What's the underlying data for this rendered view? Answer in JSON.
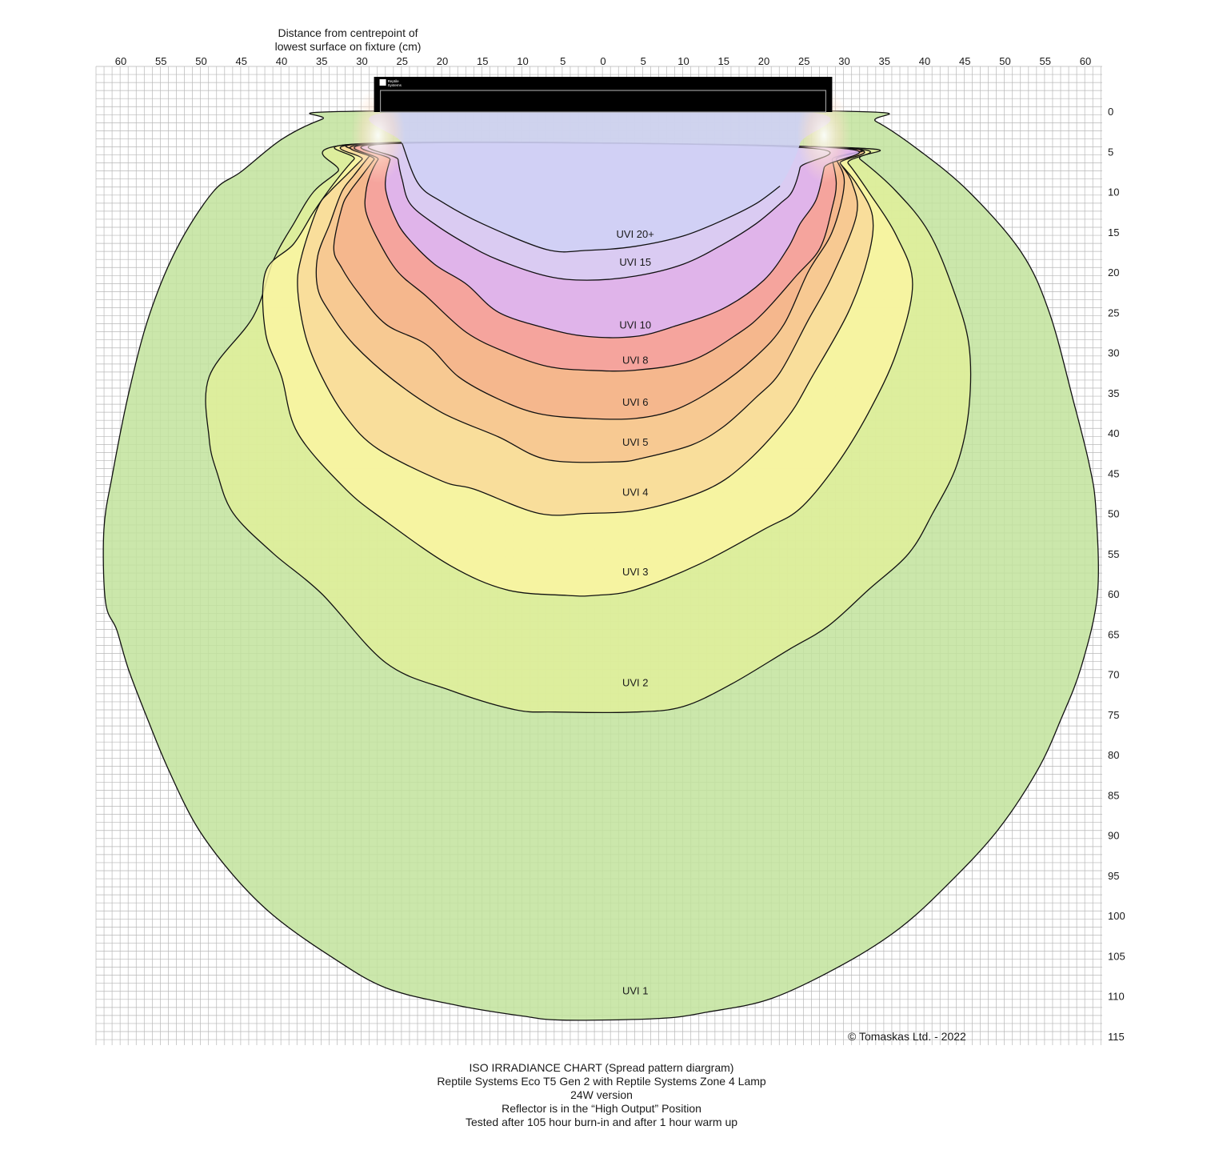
{
  "chart_data": {
    "type": "contour",
    "x_axis_label": [
      "Distance from centrepoint of",
      "lowest surface on fixture (cm)"
    ],
    "x_ticks": [
      60,
      55,
      50,
      45,
      40,
      35,
      30,
      25,
      20,
      15,
      10,
      5,
      0,
      5,
      10,
      15,
      20,
      25,
      30,
      35,
      40,
      45,
      50,
      55,
      60
    ],
    "y_ticks": [
      0,
      5,
      10,
      15,
      20,
      25,
      30,
      35,
      40,
      45,
      50,
      55,
      60,
      65,
      70,
      75,
      80,
      85,
      90,
      95,
      100,
      105,
      110,
      115
    ],
    "xlim": [
      -63,
      63
    ],
    "ylim": [
      0,
      117
    ],
    "grid": true,
    "fixture": {
      "x_range": [
        -28.5,
        28.5
      ],
      "label": [
        "Reptile",
        "Systems"
      ]
    },
    "zones": [
      {
        "label": "UVI 1",
        "color": "#c2e39c",
        "label_at": [
          4,
          109.3
        ],
        "boundary": [
          [
            -30.8,
            0
          ],
          [
            -35,
            1
          ],
          [
            -40,
            3.5
          ],
          [
            -45,
            7.5
          ],
          [
            -48.5,
            10
          ],
          [
            -53,
            17
          ],
          [
            -56.5,
            25.5
          ],
          [
            -59,
            35
          ],
          [
            -61,
            45
          ],
          [
            -62.1,
            52
          ],
          [
            -61.9,
            61
          ],
          [
            -60.5,
            64.5
          ],
          [
            -59,
            69.5
          ],
          [
            -56.5,
            76
          ],
          [
            -54,
            82
          ],
          [
            -50.5,
            89
          ],
          [
            -46,
            95
          ],
          [
            -41,
            100
          ],
          [
            -34,
            105
          ],
          [
            -27,
            109
          ],
          [
            -18,
            111.2
          ],
          [
            -10,
            112.5
          ],
          [
            -5,
            113
          ],
          [
            7,
            112.8
          ],
          [
            13,
            112
          ],
          [
            21,
            110.3
          ],
          [
            30,
            106
          ],
          [
            37,
            101.5
          ],
          [
            43,
            96
          ],
          [
            49,
            89.5
          ],
          [
            54,
            82
          ],
          [
            57,
            75.5
          ],
          [
            59.5,
            69
          ],
          [
            61.5,
            60
          ],
          [
            61.3,
            49.5
          ],
          [
            60.5,
            44
          ],
          [
            58.5,
            36
          ],
          [
            55.5,
            25
          ],
          [
            52,
            17.5
          ],
          [
            45.5,
            10
          ],
          [
            39.5,
            5
          ],
          [
            34,
            1.3
          ],
          [
            30,
            0
          ]
        ]
      },
      {
        "label": "UVI 2",
        "color": "#e0ef9a",
        "label_at": [
          4,
          71
        ],
        "boundary": [
          [
            -29.5,
            4
          ],
          [
            -33,
            7.5
          ],
          [
            -36,
            10
          ],
          [
            -38.5,
            14
          ],
          [
            -41,
            18.5
          ],
          [
            -43.5,
            25.5
          ],
          [
            -49,
            33
          ],
          [
            -49,
            40.7
          ],
          [
            -48,
            45
          ],
          [
            -46,
            50
          ],
          [
            -41,
            55
          ],
          [
            -35,
            60
          ],
          [
            -27,
            68.6
          ],
          [
            -19,
            72
          ],
          [
            -11,
            74.4
          ],
          [
            -6,
            74.7
          ],
          [
            4,
            74.7
          ],
          [
            10,
            74
          ],
          [
            16,
            71.2
          ],
          [
            23,
            67
          ],
          [
            28,
            64
          ],
          [
            33,
            59.5
          ],
          [
            38,
            55
          ],
          [
            41,
            50
          ],
          [
            44,
            44
          ],
          [
            45.5,
            37
          ],
          [
            45.5,
            29
          ],
          [
            43.5,
            22
          ],
          [
            40.5,
            15
          ],
          [
            36.5,
            10
          ],
          [
            32,
            6
          ],
          [
            29.5,
            4.5
          ]
        ]
      },
      {
        "label": "UVI 3",
        "color": "#faf5a2",
        "label_at": [
          4,
          57.2
        ],
        "boundary": [
          [
            -28.5,
            4
          ],
          [
            -31,
            6
          ],
          [
            -33.5,
            9
          ],
          [
            -36,
            12.5
          ],
          [
            -38.5,
            16.5
          ],
          [
            -42,
            20
          ],
          [
            -42,
            27.5
          ],
          [
            -40,
            33
          ],
          [
            -38,
            40
          ],
          [
            -32,
            47
          ],
          [
            -27,
            51
          ],
          [
            -19,
            56.5
          ],
          [
            -12,
            59.5
          ],
          [
            -4.5,
            60.2
          ],
          [
            -1,
            60.2
          ],
          [
            4,
            59.5
          ],
          [
            12,
            56.3
          ],
          [
            20,
            52
          ],
          [
            24.5,
            49.4
          ],
          [
            29,
            44
          ],
          [
            33,
            37.5
          ],
          [
            36.5,
            30
          ],
          [
            38.5,
            21.5
          ],
          [
            36.5,
            15.5
          ],
          [
            33,
            10
          ],
          [
            30.5,
            6.5
          ],
          [
            28.5,
            4.5
          ]
        ]
      },
      {
        "label": "UVI 4",
        "color": "#f9d99a",
        "label_at": [
          4,
          47.3
        ],
        "boundary": [
          [
            -28,
            4
          ],
          [
            -30,
            6
          ],
          [
            -32,
            8
          ],
          [
            -34,
            10
          ],
          [
            -35.5,
            12
          ],
          [
            -37.5,
            18
          ],
          [
            -38,
            22
          ],
          [
            -37,
            28
          ],
          [
            -35,
            33
          ],
          [
            -32,
            38
          ],
          [
            -28,
            42
          ],
          [
            -20,
            46
          ],
          [
            -16,
            47
          ],
          [
            -8,
            50
          ],
          [
            -2,
            50
          ],
          [
            5,
            49.5
          ],
          [
            13,
            47
          ],
          [
            18,
            43.5
          ],
          [
            23,
            38
          ],
          [
            26,
            33
          ],
          [
            30.5,
            25
          ],
          [
            33,
            18
          ],
          [
            33.5,
            13
          ],
          [
            31.5,
            9
          ],
          [
            29.5,
            6.5
          ],
          [
            28,
            4.5
          ]
        ]
      },
      {
        "label": "UVI 5",
        "color": "#f7c690",
        "label_at": [
          4,
          41.1
        ],
        "boundary": [
          [
            -27.5,
            4
          ],
          [
            -29,
            5.5
          ],
          [
            -31,
            8
          ],
          [
            -32.5,
            10
          ],
          [
            -34,
            14
          ],
          [
            -35.5,
            18
          ],
          [
            -35.5,
            22
          ],
          [
            -34,
            25
          ],
          [
            -31,
            29
          ],
          [
            -26,
            33.5
          ],
          [
            -20,
            37.5
          ],
          [
            -13,
            40.5
          ],
          [
            -7,
            43.3
          ],
          [
            1.5,
            43.6
          ],
          [
            5,
            43.1
          ],
          [
            11,
            41.5
          ],
          [
            15,
            39.2
          ],
          [
            19,
            35.6
          ],
          [
            22,
            32.5
          ],
          [
            25.5,
            26
          ],
          [
            28.5,
            20.5
          ],
          [
            31.5,
            13
          ],
          [
            31,
            9
          ],
          [
            29.5,
            6.5
          ],
          [
            28,
            4.5
          ]
        ]
      },
      {
        "label": "UVI 6",
        "color": "#f5b48c",
        "label_at": [
          4,
          36.1
        ],
        "boundary": [
          [
            -27,
            4
          ],
          [
            -28.5,
            6
          ],
          [
            -30,
            8
          ],
          [
            -31.5,
            10
          ],
          [
            -32.5,
            12
          ],
          [
            -33.5,
            17
          ],
          [
            -32.5,
            19.5
          ],
          [
            -30.5,
            22.5
          ],
          [
            -27,
            26.5
          ],
          [
            -22,
            29
          ],
          [
            -18,
            33
          ],
          [
            -13,
            35.8
          ],
          [
            -8,
            37.6
          ],
          [
            -2,
            38.2
          ],
          [
            4,
            38.2
          ],
          [
            9,
            37.1
          ],
          [
            14,
            34.4
          ],
          [
            19,
            30.5
          ],
          [
            22.5,
            26.5
          ],
          [
            25.5,
            20
          ],
          [
            28.5,
            15
          ],
          [
            30,
            9
          ],
          [
            29,
            6
          ],
          [
            28,
            4.5
          ]
        ]
      },
      {
        "label": "UVI 8",
        "color": "#f4a1a0",
        "label_at": [
          4,
          30.9
        ],
        "boundary": [
          [
            -26.5,
            4
          ],
          [
            -28,
            6
          ],
          [
            -29,
            8
          ],
          [
            -29.5,
            10
          ],
          [
            -29.5,
            12.5
          ],
          [
            -28,
            16
          ],
          [
            -25.5,
            20
          ],
          [
            -22,
            23
          ],
          [
            -17,
            27.5
          ],
          [
            -12,
            30
          ],
          [
            -7,
            31.7
          ],
          [
            -2,
            32.2
          ],
          [
            4,
            32.2
          ],
          [
            11,
            31
          ],
          [
            17,
            27.5
          ],
          [
            20,
            25
          ],
          [
            24,
            20.5
          ],
          [
            27,
            17
          ],
          [
            28.5,
            12
          ],
          [
            29,
            9
          ],
          [
            28.5,
            6
          ],
          [
            28,
            4.5
          ]
        ]
      },
      {
        "label": "UVI 10",
        "color": "#dcb7f8",
        "label_at": [
          4,
          26.5
        ],
        "boundary": [
          [
            -26,
            4
          ],
          [
            -26.5,
            6
          ],
          [
            -27,
            8
          ],
          [
            -27,
            10
          ],
          [
            -26,
            13
          ],
          [
            -24.5,
            15.5
          ],
          [
            -21,
            19
          ],
          [
            -17,
            21.5
          ],
          [
            -13,
            25
          ],
          [
            -7,
            27
          ],
          [
            -2,
            28
          ],
          [
            4,
            28
          ],
          [
            9,
            26.7
          ],
          [
            15,
            24.5
          ],
          [
            20,
            21
          ],
          [
            23,
            17
          ],
          [
            24.5,
            14
          ],
          [
            26.5,
            11
          ],
          [
            27.5,
            7
          ],
          [
            28,
            4.5
          ]
        ]
      },
      {
        "label": "UVI 15",
        "color": "#d8cff3",
        "label_at": [
          4,
          18.7
        ],
        "boundary": [
          [
            -25.5,
            4
          ],
          [
            -25.5,
            6
          ],
          [
            -25,
            8.5
          ],
          [
            -24,
            11.5
          ],
          [
            -21,
            14
          ],
          [
            -17,
            16.5
          ],
          [
            -13,
            18.5
          ],
          [
            -7,
            20.5
          ],
          [
            -2,
            21
          ],
          [
            4,
            20.5
          ],
          [
            10,
            19
          ],
          [
            15,
            16.5
          ],
          [
            19,
            14
          ],
          [
            22,
            11.5
          ],
          [
            23.5,
            10
          ],
          [
            24.5,
            7
          ],
          [
            24.5,
            4.5
          ]
        ]
      },
      {
        "label": "UVI 20+",
        "color": "#cfd0f5",
        "label_at": [
          4,
          15.2
        ],
        "boundary": [
          [
            -25,
            4
          ],
          [
            -23,
            9
          ],
          [
            -20,
            11.3
          ],
          [
            -15,
            14
          ],
          [
            -7,
            17.2
          ],
          [
            -2,
            17.3
          ],
          [
            4,
            16.8
          ],
          [
            10,
            15.5
          ],
          [
            15,
            13.5
          ],
          [
            19,
            11.5
          ],
          [
            22,
            9.3
          ]
        ]
      }
    ]
  },
  "footer": {
    "copyright": "© Tomaskas Ltd. - 2022",
    "lines": [
      "ISO IRRADIANCE CHART (Spread pattern diargram)",
      "Reptile Systems Eco T5 Gen 2 with Reptile Systems Zone 4 Lamp",
      "24W version",
      "Reflector is in the “High Output” Position",
      "Tested after 105 hour burn-in and after 1 hour warm up"
    ]
  }
}
